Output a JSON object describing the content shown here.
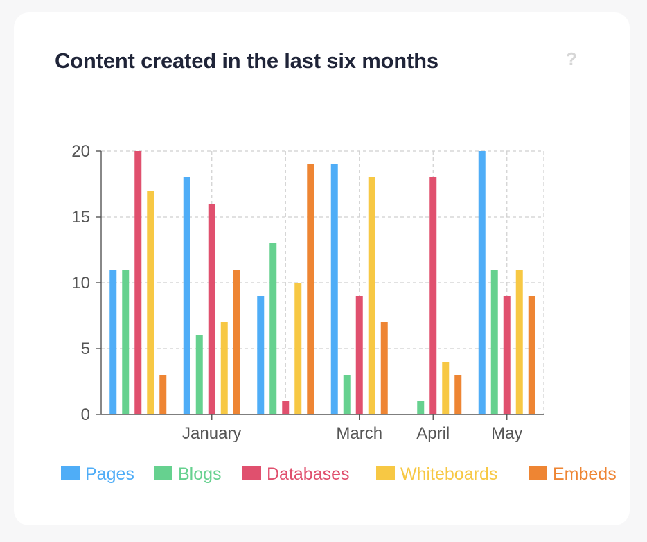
{
  "card": {
    "title": "Content created in the last six months",
    "help_glyph": "?",
    "help_icon": "help-icon"
  },
  "chart_data": {
    "type": "bar",
    "title": "Content created in the last six months",
    "group_count": 6,
    "x_tick_labels": [
      {
        "group": 1.5,
        "label": "January"
      },
      {
        "group": 3.5,
        "label": "March"
      },
      {
        "group": 4.5,
        "label": "April"
      },
      {
        "group": 5.5,
        "label": "May"
      }
    ],
    "ylim": [
      0,
      20
    ],
    "yticks": [
      0,
      5,
      10,
      15,
      20
    ],
    "grid": true,
    "legend_position": "bottom",
    "series": [
      {
        "name": "Pages",
        "color": "#4fadf7",
        "values": [
          11,
          18,
          9,
          19,
          0,
          20
        ]
      },
      {
        "name": "Blogs",
        "color": "#66d18f",
        "values": [
          11,
          6,
          13,
          3,
          1,
          11
        ]
      },
      {
        "name": "Databases",
        "color": "#e0506e",
        "values": [
          20,
          16,
          1,
          9,
          18,
          9
        ]
      },
      {
        "name": "Whiteboards",
        "color": "#f7c844",
        "values": [
          17,
          7,
          10,
          18,
          4,
          11
        ]
      },
      {
        "name": "Embeds",
        "color": "#ee8533",
        "values": [
          3,
          11,
          19,
          7,
          3,
          9
        ]
      }
    ]
  }
}
